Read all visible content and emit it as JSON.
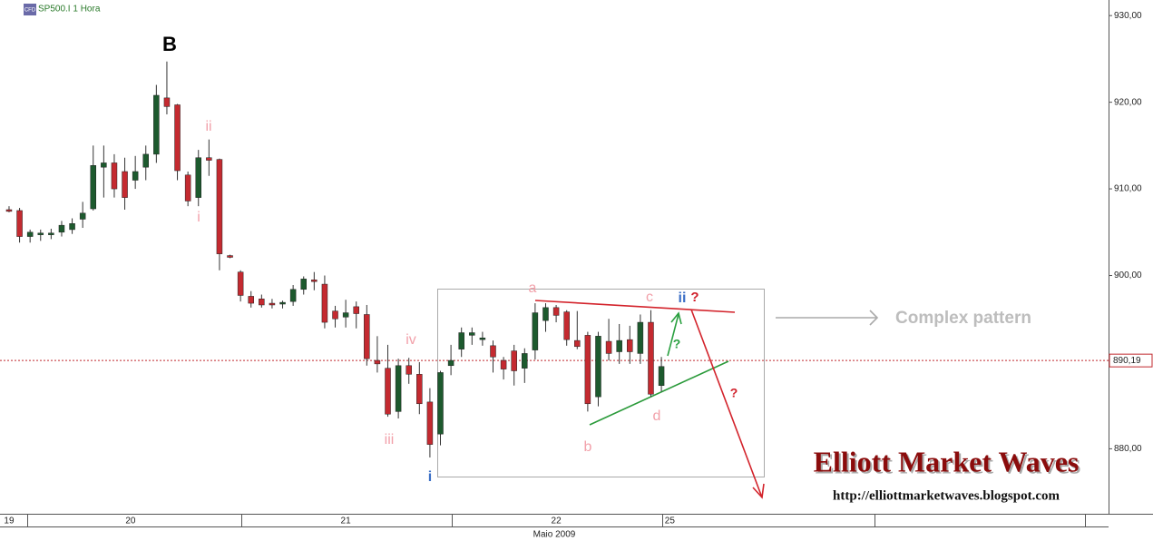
{
  "chart_data": {
    "type": "candlestick",
    "header": "SP500.I 1 Hora",
    "header_icon": "CFD",
    "x_axis_label": "Maio 2009",
    "up_color": "#1d5a2e",
    "down_color": "#c42a30",
    "open": [
      907.6,
      907.5,
      904.5,
      904.7,
      904.7,
      905,
      905.3,
      906.5,
      907.7,
      912.5,
      913,
      912,
      911,
      912.5,
      914,
      920.5,
      919.7,
      911.6,
      909,
      913.6,
      913.4,
      902.3,
      900.4,
      897.6,
      897.3,
      896.8,
      896.7,
      897,
      898.4,
      899.5,
      899,
      895.9,
      895.2,
      896.4,
      895.5,
      890.2,
      889.3,
      884.3,
      889.6,
      888.6,
      885.4,
      881.7,
      889.6,
      891.5,
      893.1,
      892.6,
      891.9,
      890.2,
      891.3,
      889.3,
      891.4,
      894.8,
      896.3,
      895.8,
      892.5,
      893.1,
      886,
      892.4,
      891.2,
      892.6,
      891,
      894.6,
      887.3
    ],
    "high": [
      908,
      907.8,
      905.3,
      905.3,
      905.4,
      906.3,
      906.6,
      908.5,
      915,
      915,
      914,
      913.6,
      913.8,
      915,
      922,
      924.7,
      919.8,
      912,
      914.5,
      915.7,
      913.5,
      902.4,
      900.6,
      898.2,
      897.8,
      897.3,
      897.1,
      898.9,
      899.9,
      900.4,
      900,
      896.5,
      897.2,
      897,
      896.6,
      893,
      892,
      890.4,
      890.5,
      890,
      887,
      889,
      892,
      894,
      894,
      893.5,
      892.5,
      890.6,
      892,
      891.6,
      896.8,
      896.8,
      896.6,
      896,
      895.9,
      893.5,
      893.5,
      895,
      894.4,
      894.2,
      895.5,
      896,
      890.6
    ],
    "low": [
      907.3,
      903.8,
      903.8,
      904,
      904.2,
      904.5,
      904.8,
      905.5,
      907.5,
      909,
      909,
      907.6,
      910,
      911,
      913,
      918.6,
      911,
      908,
      908,
      911.5,
      900.6,
      902,
      897,
      896.3,
      896.3,
      896.2,
      896.2,
      896.5,
      897.8,
      898.3,
      893.9,
      894,
      894,
      893.9,
      889.6,
      888.8,
      883.7,
      883.5,
      887.5,
      884,
      879,
      880.4,
      888.5,
      890.6,
      892,
      891.9,
      888.8,
      888,
      887.3,
      887.6,
      890.3,
      893.5,
      894.6,
      891.9,
      891.5,
      884.3,
      884.9,
      890.2,
      889.8,
      889.8,
      889.8,
      886,
      886.6
    ],
    "close": [
      907.4,
      904.5,
      905,
      904.9,
      904.9,
      905.8,
      906,
      907.2,
      912.7,
      913,
      910,
      909,
      912,
      914,
      920.8,
      919.5,
      912.1,
      908.6,
      913.6,
      913.3,
      902.5,
      902.1,
      897.7,
      896.8,
      896.6,
      896.6,
      896.9,
      898.4,
      899.6,
      899.3,
      894.6,
      895,
      895.7,
      895.6,
      890.4,
      889.8,
      884,
      889.6,
      888.6,
      885.2,
      880.5,
      888.8,
      890.2,
      893.4,
      893.4,
      892.8,
      890.6,
      889.2,
      889,
      891,
      895.7,
      896.3,
      895.4,
      892.6,
      891.8,
      885.2,
      893,
      891,
      892.5,
      891.2,
      894.6,
      886.3,
      889.5
    ],
    "xlim": [
      -0.86,
      104.5
    ],
    "xticks": [
      {
        "value": 0,
        "label": "19"
      },
      {
        "value": 11.55,
        "label": "20"
      },
      {
        "value": 32,
        "label": "21"
      },
      {
        "value": 52,
        "label": "22"
      },
      {
        "value": 62.8,
        "label": "25"
      }
    ],
    "ylim": [
      872.5,
      931.8
    ],
    "yticks": [
      {
        "value": 930,
        "label": "930,00"
      },
      {
        "value": 920,
        "label": "920,00"
      },
      {
        "value": 910,
        "label": "910,00"
      },
      {
        "value": 900,
        "label": "900,00"
      },
      {
        "value": 890,
        "label": "890,00"
      },
      {
        "value": 880,
        "label": "880,00"
      }
    ],
    "last_price": {
      "value": 890.19,
      "label": "890,19"
    },
    "annotations": [
      {
        "text": "B",
        "color": "#000000"
      },
      {
        "text": "ii",
        "color": "#f2a1aa"
      },
      {
        "text": "i",
        "color": "#f2a1aa"
      },
      {
        "text": "iv",
        "color": "#f2a1aa"
      },
      {
        "text": "iii",
        "color": "#f2a1aa"
      },
      {
        "text": "i",
        "color": "#3b6fc6"
      },
      {
        "text": "a",
        "color": "#f2a1aa"
      },
      {
        "text": "b",
        "color": "#f2a1aa"
      },
      {
        "text": "c",
        "color": "#f2a1aa"
      },
      {
        "text": "d",
        "color": "#f2a1aa"
      },
      {
        "text": "ii",
        "color": "#3b6fc6"
      },
      {
        "text": "?",
        "color": "#d0202a"
      },
      {
        "text": "?",
        "color": "#2aa040"
      },
      {
        "text": "?",
        "color": "#d0202a"
      },
      {
        "text": "Complex pattern",
        "color": "#bdbdbd"
      }
    ],
    "watermark": {
      "title": "Elliott Market Waves",
      "url": "http://elliottmarketwaves.blogspot.com"
    }
  }
}
